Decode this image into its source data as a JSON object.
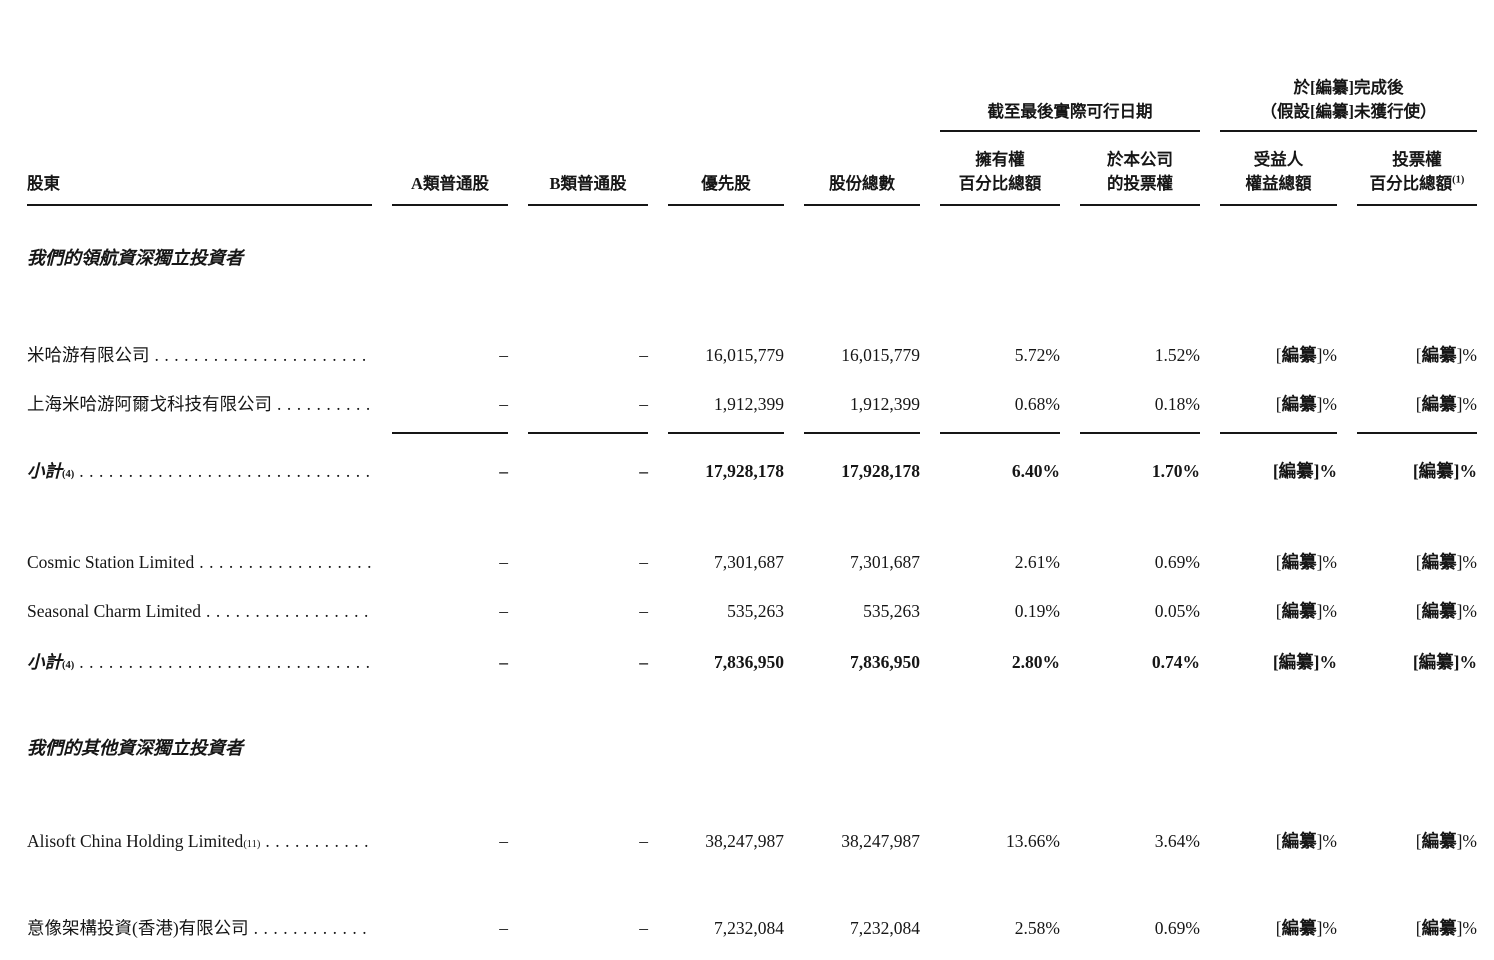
{
  "page": {
    "background": "#ffffff",
    "text_color": "#161616"
  },
  "header": {
    "group_latest_practicable": "截至最後實際可行日期",
    "group_post_completion_line1": "於[編纂]完成後",
    "group_post_completion_line2": "（假設[編纂]未獲行使）",
    "col_shareholder": "股東",
    "col_class_a": "A類普通股",
    "col_class_b": "B類普通股",
    "col_preferred": "優先股",
    "col_total_shares": "股份總數",
    "col_ownership_line1": "擁有權",
    "col_ownership_line2": "百分比總額",
    "col_voting_line1": "於本公司",
    "col_voting_line2": "的投票權",
    "col_beneficial_line1": "受益人",
    "col_beneficial_line2": "權益總額",
    "col_voting_pct_line1": "投票權",
    "col_voting_pct_line2": "百分比總額",
    "col_voting_pct_sup": "(1)"
  },
  "table": {
    "column_keys": [
      "class-a",
      "class-b",
      "preferred",
      "total-shares",
      "ownership-pct",
      "voting-rights",
      "beneficial-interest",
      "voting-pct"
    ],
    "rows": [
      {
        "type": "section",
        "label": "我們的領航資深獨立投資者"
      },
      {
        "type": "gap",
        "size": "lg"
      },
      {
        "type": "data",
        "name": "米哈游有限公司",
        "values": [
          "–",
          "–",
          "16,015,779",
          "16,015,779",
          "5.72%",
          "1.52%",
          "[編纂]%",
          "[編纂]%"
        ]
      },
      {
        "type": "data",
        "name": "上海米哈游阿爾戈科技有限公司",
        "values": [
          "–",
          "–",
          "1,912,399",
          "1,912,399",
          "0.68%",
          "0.18%",
          "[編纂]%",
          "[編纂]%"
        ]
      },
      {
        "type": "rule"
      },
      {
        "type": "subtotal",
        "name": "小計",
        "sup": "(4)",
        "values": [
          "–",
          "–",
          "17,928,178",
          "17,928,178",
          "6.40%",
          "1.70%",
          "[編纂]%",
          "[編纂]%"
        ]
      },
      {
        "type": "gap",
        "size": "md"
      },
      {
        "type": "data",
        "name": "Cosmic Station Limited",
        "values": [
          "–",
          "–",
          "7,301,687",
          "7,301,687",
          "2.61%",
          "0.69%",
          "[編纂]%",
          "[編纂]%"
        ]
      },
      {
        "type": "data",
        "name": "Seasonal Charm Limited",
        "values": [
          "–",
          "–",
          "535,263",
          "535,263",
          "0.19%",
          "0.05%",
          "[編纂]%",
          "[編纂]%"
        ]
      },
      {
        "type": "subtotal",
        "name": "小計",
        "sup": "(4)",
        "values": [
          "–",
          "–",
          "7,836,950",
          "7,836,950",
          "2.80%",
          "0.74%",
          "[編纂]%",
          "[編纂]%"
        ]
      },
      {
        "type": "gap",
        "size": "md"
      },
      {
        "type": "section",
        "label": "我們的其他資深獨立投資者"
      },
      {
        "type": "gap",
        "size": "lg"
      },
      {
        "type": "data",
        "name": "Alisoft China Holding Limited",
        "sup": "(11)",
        "values": [
          "–",
          "–",
          "38,247,987",
          "38,247,987",
          "13.66%",
          "3.64%",
          "[編纂]%",
          "[編纂]%"
        ]
      },
      {
        "type": "gap",
        "size": "sm"
      },
      {
        "type": "data",
        "name": "意像架構投資(香港)有限公司",
        "values": [
          "–",
          "–",
          "7,232,084",
          "7,232,084",
          "2.58%",
          "0.69%",
          "[編纂]%",
          "[編纂]%"
        ]
      }
    ]
  }
}
